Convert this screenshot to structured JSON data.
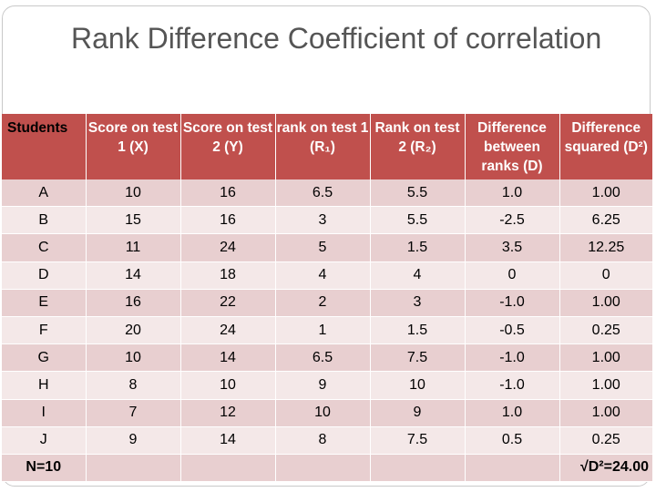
{
  "title": "Rank Difference Coefficient of correlation",
  "table": {
    "headers": [
      "Students",
      "Score on test 1 (X)",
      "Score on test 2 (Y)",
      "rank on test 1 (R₁)",
      "Rank on test 2 (R₂)",
      "Difference between ranks (D)",
      "Difference squared (D²)"
    ],
    "rows": [
      [
        "A",
        "10",
        "16",
        "6.5",
        "5.5",
        "1.0",
        "1.00"
      ],
      [
        "B",
        "15",
        "16",
        "3",
        "5.5",
        "-2.5",
        "6.25"
      ],
      [
        "C",
        "11",
        "24",
        "5",
        "1.5",
        "3.5",
        "12.25"
      ],
      [
        "D",
        "14",
        "18",
        "4",
        "4",
        "0",
        "0"
      ],
      [
        "E",
        "16",
        "22",
        "2",
        "3",
        "-1.0",
        "1.00"
      ],
      [
        "F",
        "20",
        "24",
        "1",
        "1.5",
        "-0.5",
        "0.25"
      ],
      [
        "G",
        "10",
        "14",
        "6.5",
        "7.5",
        "-1.0",
        "1.00"
      ],
      [
        "H",
        "8",
        "10",
        "9",
        "10",
        "-1.0",
        "1.00"
      ],
      [
        "I",
        "7",
        "12",
        "10",
        "9",
        "1.0",
        "1.00"
      ],
      [
        "J",
        "9",
        "14",
        "8",
        "7.5",
        "0.5",
        "0.25"
      ]
    ],
    "footer": {
      "n_label": "N=10",
      "sum_label": "√D²=24.00"
    }
  },
  "colors": {
    "header_bg": "#c0504d",
    "row_odd": "#e8cfd0",
    "row_even": "#f4e8e8",
    "title_text": "#555555"
  }
}
